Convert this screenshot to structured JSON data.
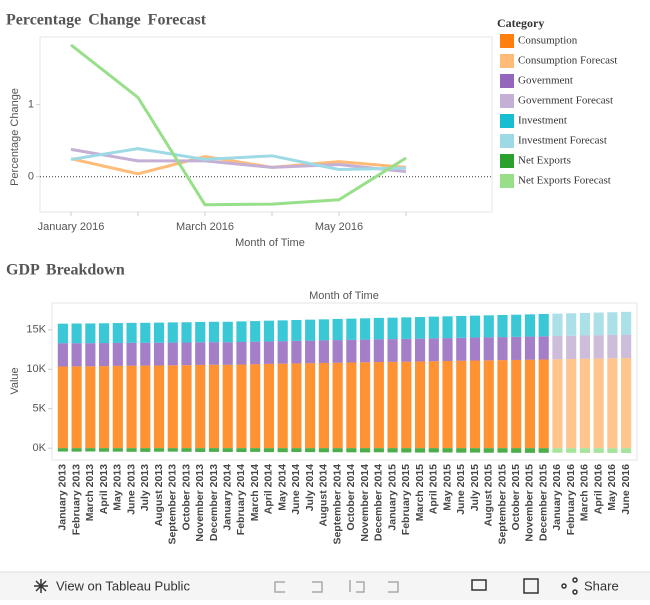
{
  "chart_data": [
    {
      "type": "line",
      "title": "Percentage Change Forecast",
      "x_label": "Month of Time",
      "y_label": "Percentage Change",
      "categories": [
        "January 2016",
        null,
        "March 2016",
        null,
        "May 2016",
        null
      ],
      "ylim": [
        -0.49,
        1.94
      ],
      "yticks": [
        0,
        1
      ],
      "series": [
        {
          "color": "#ffbb78",
          "values": [
            0.25,
            0.04,
            0.28,
            0.13,
            0.21,
            0.13
          ]
        },
        {
          "color": "#c5b0d5",
          "values": [
            0.38,
            0.22,
            0.22,
            0.13,
            0.17,
            0.07
          ]
        },
        {
          "color": "#9edae5",
          "values": [
            0.24,
            0.39,
            0.24,
            0.29,
            0.1,
            0.12
          ]
        },
        {
          "color": "#98df8a",
          "values": [
            1.83,
            1.1,
            -0.39,
            -0.38,
            -0.32,
            0.26
          ]
        }
      ]
    },
    {
      "type": "stacked_bar",
      "title": "GDP Breakdown",
      "x_label": "Month of Time",
      "y_label": "Value",
      "categories": [
        "January 2013",
        "February 2013",
        "March 2013",
        "April 2013",
        "May 2013",
        "June 2013",
        "July 2013",
        "August 2013",
        "September 2013",
        "October 2013",
        "November 2013",
        "December 2013",
        "January 2014",
        "February 2014",
        "March 2014",
        "April 2014",
        "May 2014",
        "June 2014",
        "July 2014",
        "August 2014",
        "September 2014",
        "October 2014",
        "November 2014",
        "December 2014",
        "January 2015",
        "February 2015",
        "March 2015",
        "April 2015",
        "May 2015",
        "June 2015",
        "July 2015",
        "August 2015",
        "September 2015",
        "October 2015",
        "November 2015",
        "December 2015",
        "January 2016",
        "February 2016",
        "March 2016",
        "April 2016",
        "May 2016",
        "June 2016"
      ],
      "ylim": [
        -1500,
        18400
      ],
      "yticks": [
        {
          "value": 0,
          "label": "0K"
        },
        {
          "value": 5000,
          "label": "5K"
        },
        {
          "value": 10000,
          "label": "10K"
        },
        {
          "value": 15000,
          "label": "15K"
        }
      ],
      "series": [
        {
          "name": "Consumption",
          "color": "#ff7f0e",
          "values": [
            10350,
            10370,
            10380,
            10400,
            10430,
            10450,
            10460,
            10480,
            10500,
            10520,
            10550,
            10570,
            10560,
            10600,
            10640,
            10680,
            10710,
            10740,
            10770,
            10800,
            10830,
            10860,
            10890,
            10920,
            10940,
            10960,
            10990,
            11020,
            11050,
            11080,
            11110,
            11130,
            11160,
            11180,
            11210,
            11240,
            null,
            null,
            null,
            null,
            null,
            null
          ]
        },
        {
          "name": "Consumption Forecast",
          "color": "#ffbb78",
          "values": [
            null,
            null,
            null,
            null,
            null,
            null,
            null,
            null,
            null,
            null,
            null,
            null,
            null,
            null,
            null,
            null,
            null,
            null,
            null,
            null,
            null,
            null,
            null,
            null,
            null,
            null,
            null,
            null,
            null,
            null,
            null,
            null,
            null,
            null,
            null,
            null,
            11270,
            11300,
            11330,
            11360,
            11390,
            11420
          ]
        },
        {
          "name": "Government",
          "color": "#9467bd",
          "values": [
            2950,
            2940,
            2930,
            2920,
            2910,
            2900,
            2890,
            2880,
            2880,
            2870,
            2870,
            2860,
            2860,
            2860,
            2850,
            2850,
            2850,
            2860,
            2860,
            2860,
            2870,
            2870,
            2870,
            2880,
            2880,
            2890,
            2890,
            2900,
            2900,
            2910,
            2910,
            2920,
            2920,
            2930,
            2930,
            2940,
            null,
            null,
            null,
            null,
            null,
            null
          ]
        },
        {
          "name": "Government Forecast",
          "color": "#c5b0d5",
          "values": [
            null,
            null,
            null,
            null,
            null,
            null,
            null,
            null,
            null,
            null,
            null,
            null,
            null,
            null,
            null,
            null,
            null,
            null,
            null,
            null,
            null,
            null,
            null,
            null,
            null,
            null,
            null,
            null,
            null,
            null,
            null,
            null,
            null,
            null,
            null,
            null,
            2940,
            2950,
            2950,
            2960,
            2960,
            2970
          ]
        },
        {
          "name": "Investment",
          "color": "#17becf",
          "values": [
            2480,
            2490,
            2500,
            2510,
            2520,
            2530,
            2540,
            2550,
            2560,
            2570,
            2580,
            2590,
            2600,
            2610,
            2620,
            2630,
            2640,
            2650,
            2660,
            2670,
            2680,
            2690,
            2700,
            2710,
            2720,
            2730,
            2740,
            2750,
            2760,
            2770,
            2780,
            2790,
            2800,
            2810,
            2820,
            2830,
            null,
            null,
            null,
            null,
            null,
            null
          ]
        },
        {
          "name": "Investment Forecast",
          "color": "#9edae5",
          "values": [
            null,
            null,
            null,
            null,
            null,
            null,
            null,
            null,
            null,
            null,
            null,
            null,
            null,
            null,
            null,
            null,
            null,
            null,
            null,
            null,
            null,
            null,
            null,
            null,
            null,
            null,
            null,
            null,
            null,
            null,
            null,
            null,
            null,
            null,
            null,
            null,
            2840,
            2850,
            2860,
            2870,
            2880,
            2890
          ]
        },
        {
          "name": "Net Exports",
          "color": "#2ca02c",
          "values": [
            -430,
            -440,
            -420,
            -450,
            -440,
            -460,
            -470,
            -450,
            -440,
            -460,
            -480,
            -470,
            -480,
            -490,
            -470,
            -500,
            -510,
            -490,
            -500,
            -520,
            -510,
            -530,
            -540,
            -520,
            -540,
            -550,
            -560,
            -540,
            -550,
            -570,
            -560,
            -580,
            -570,
            -590,
            -600,
            -590,
            null,
            null,
            null,
            null,
            null,
            null
          ]
        },
        {
          "name": "Net Exports Forecast",
          "color": "#98df8a",
          "values": [
            null,
            null,
            null,
            null,
            null,
            null,
            null,
            null,
            null,
            null,
            null,
            null,
            null,
            null,
            null,
            null,
            null,
            null,
            null,
            null,
            null,
            null,
            null,
            null,
            null,
            null,
            null,
            null,
            null,
            null,
            null,
            null,
            null,
            null,
            null,
            null,
            -580,
            -590,
            -600,
            -600,
            -610,
            -610
          ]
        }
      ]
    }
  ],
  "legend": {
    "title": "Category"
  },
  "toolbar": {
    "view_link": "View on Tableau Public",
    "share": "Share"
  }
}
